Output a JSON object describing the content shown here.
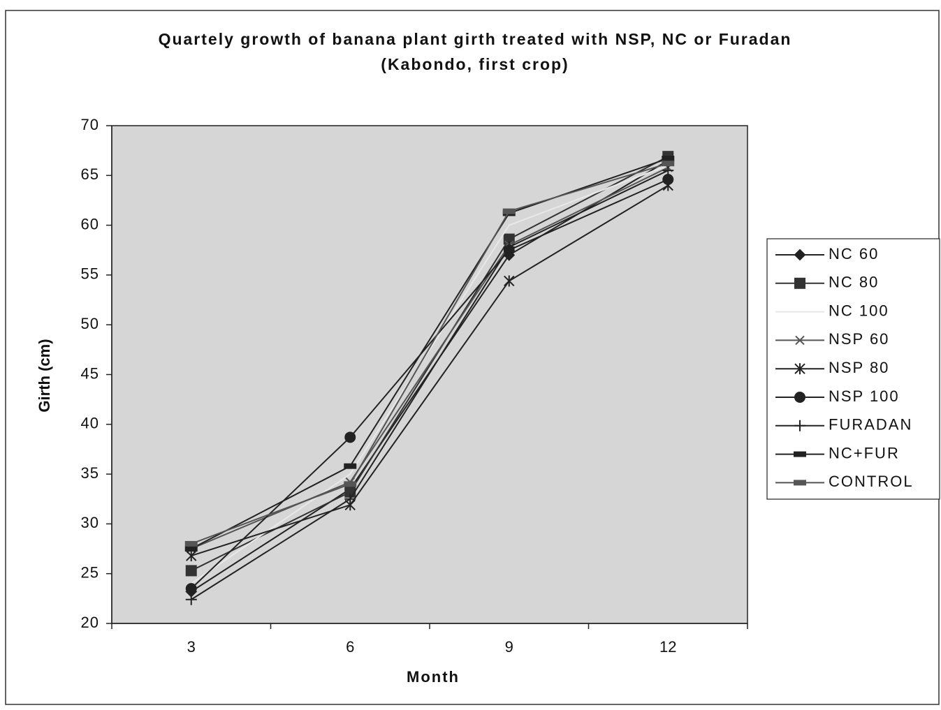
{
  "chart_data": {
    "type": "line",
    "title": "Quartely growth of banana plant girth treated with NSP, NC or Furadan (Kabondo, first crop)",
    "x_label": "Month",
    "y_label": "Girth (cm)",
    "categories": [
      "3",
      "6",
      "9",
      "12"
    ],
    "ylim": [
      20,
      70
    ],
    "yticks": [
      20,
      25,
      30,
      35,
      40,
      45,
      50,
      55,
      60,
      65,
      70
    ],
    "legend": "right",
    "series": [
      {
        "name": "NC 60",
        "color": "#222222",
        "marker": "diamond",
        "values": [
          23.2,
          33.5,
          57,
          66.5
        ]
      },
      {
        "name": "NC 80",
        "color": "#333333",
        "marker": "square",
        "values": [
          25.3,
          33.2,
          58.6,
          66.9
        ]
      },
      {
        "name": "NC 100",
        "color": "#e8e8e8",
        "marker": "none",
        "values": [
          24,
          35,
          60,
          66
        ]
      },
      {
        "name": "NSP 60",
        "color": "#555555",
        "marker": "x",
        "values": [
          27.5,
          34.2,
          58,
          65.8
        ]
      },
      {
        "name": "NSP 80",
        "color": "#222222",
        "marker": "star",
        "values": [
          26.8,
          31.9,
          54.4,
          64
        ]
      },
      {
        "name": "NSP 100",
        "color": "#222222",
        "marker": "circle",
        "values": [
          23.5,
          38.7,
          57.5,
          64.6
        ]
      },
      {
        "name": "FURADAN",
        "color": "#222222",
        "marker": "plus",
        "values": [
          22.4,
          32.5,
          57.8,
          65.5
        ]
      },
      {
        "name": "NC+FUR",
        "color": "#222222",
        "marker": "dash",
        "values": [
          27.5,
          35.8,
          61.2,
          66.7
        ]
      },
      {
        "name": "CONTROL",
        "color": "#555555",
        "marker": "dash",
        "values": [
          28,
          34,
          61.4,
          66.2
        ]
      }
    ]
  }
}
